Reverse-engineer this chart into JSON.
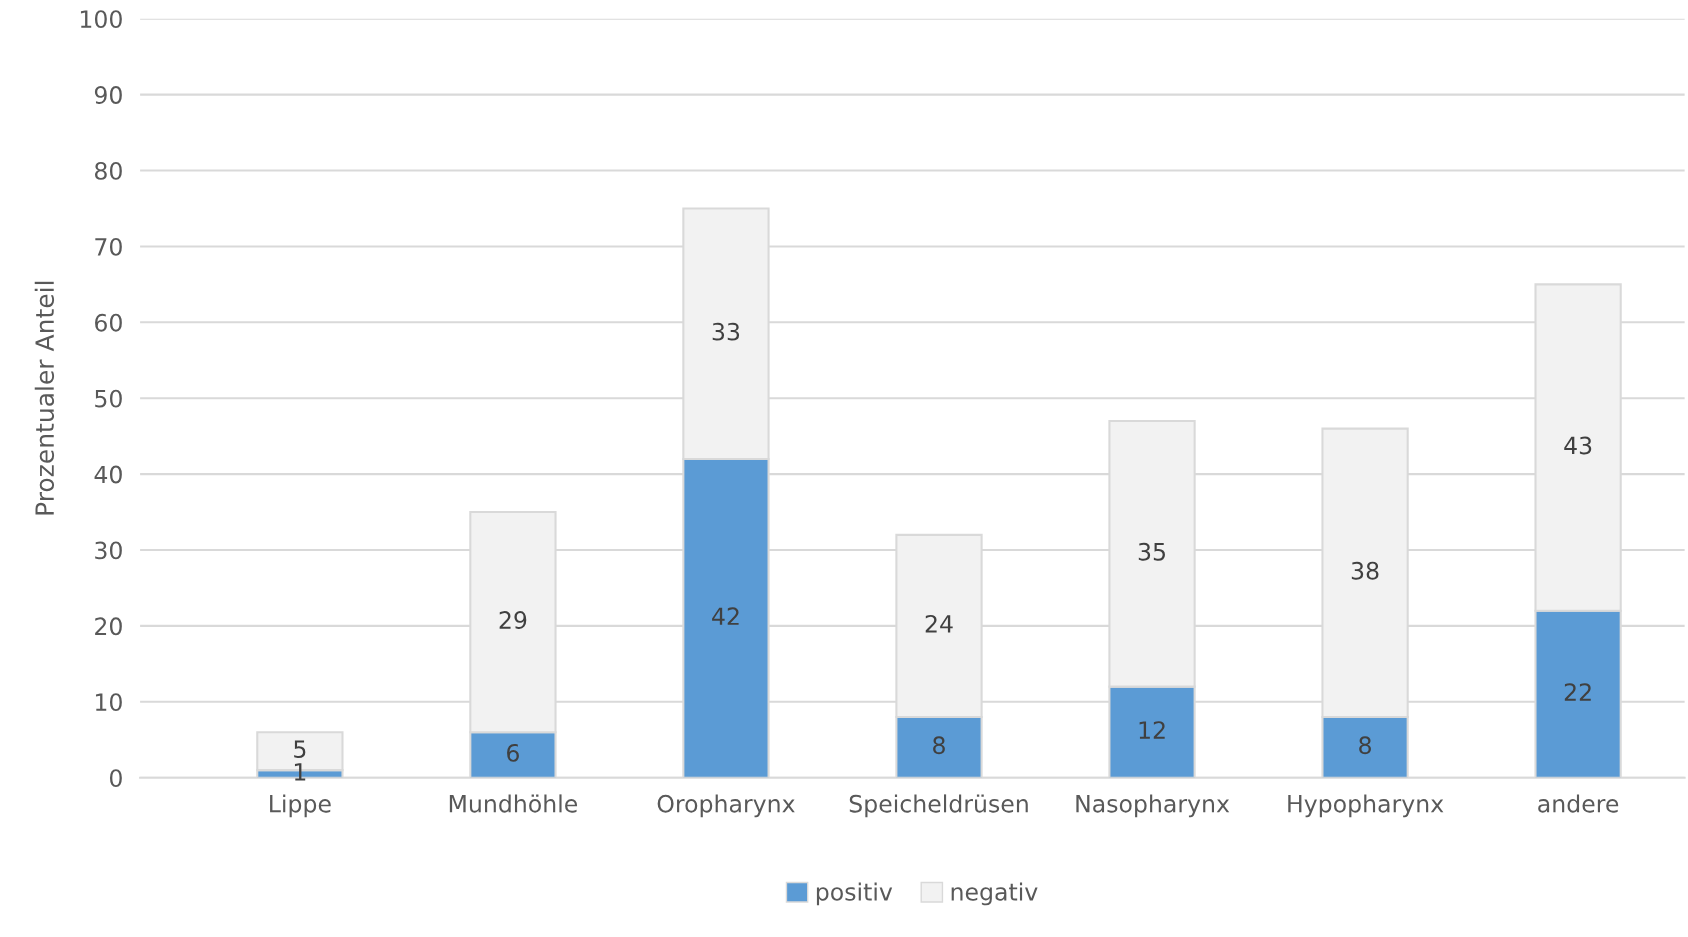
{
  "chart_data": {
    "type": "bar",
    "stacked": true,
    "ylabel": "Prozentualer Anteil",
    "categories": [
      "Lippe",
      "Mundhöhle",
      "Oropharynx",
      "Speicheldrüsen",
      "Nasopharynx",
      "Hypopharynx",
      "andere"
    ],
    "series": [
      {
        "name": "positiv",
        "color": "#5b9bd5",
        "values": [
          1,
          6,
          42,
          8,
          12,
          8,
          22
        ]
      },
      {
        "name": "negativ",
        "color": "#f2f2f2",
        "values": [
          5,
          29,
          33,
          24,
          35,
          38,
          43
        ]
      }
    ],
    "ylim": [
      0,
      100
    ],
    "yticks": [
      0,
      10,
      20,
      30,
      40,
      50,
      60,
      70,
      80,
      90,
      100
    ],
    "grid": "y",
    "legend": "bottom",
    "data_labels": true
  }
}
